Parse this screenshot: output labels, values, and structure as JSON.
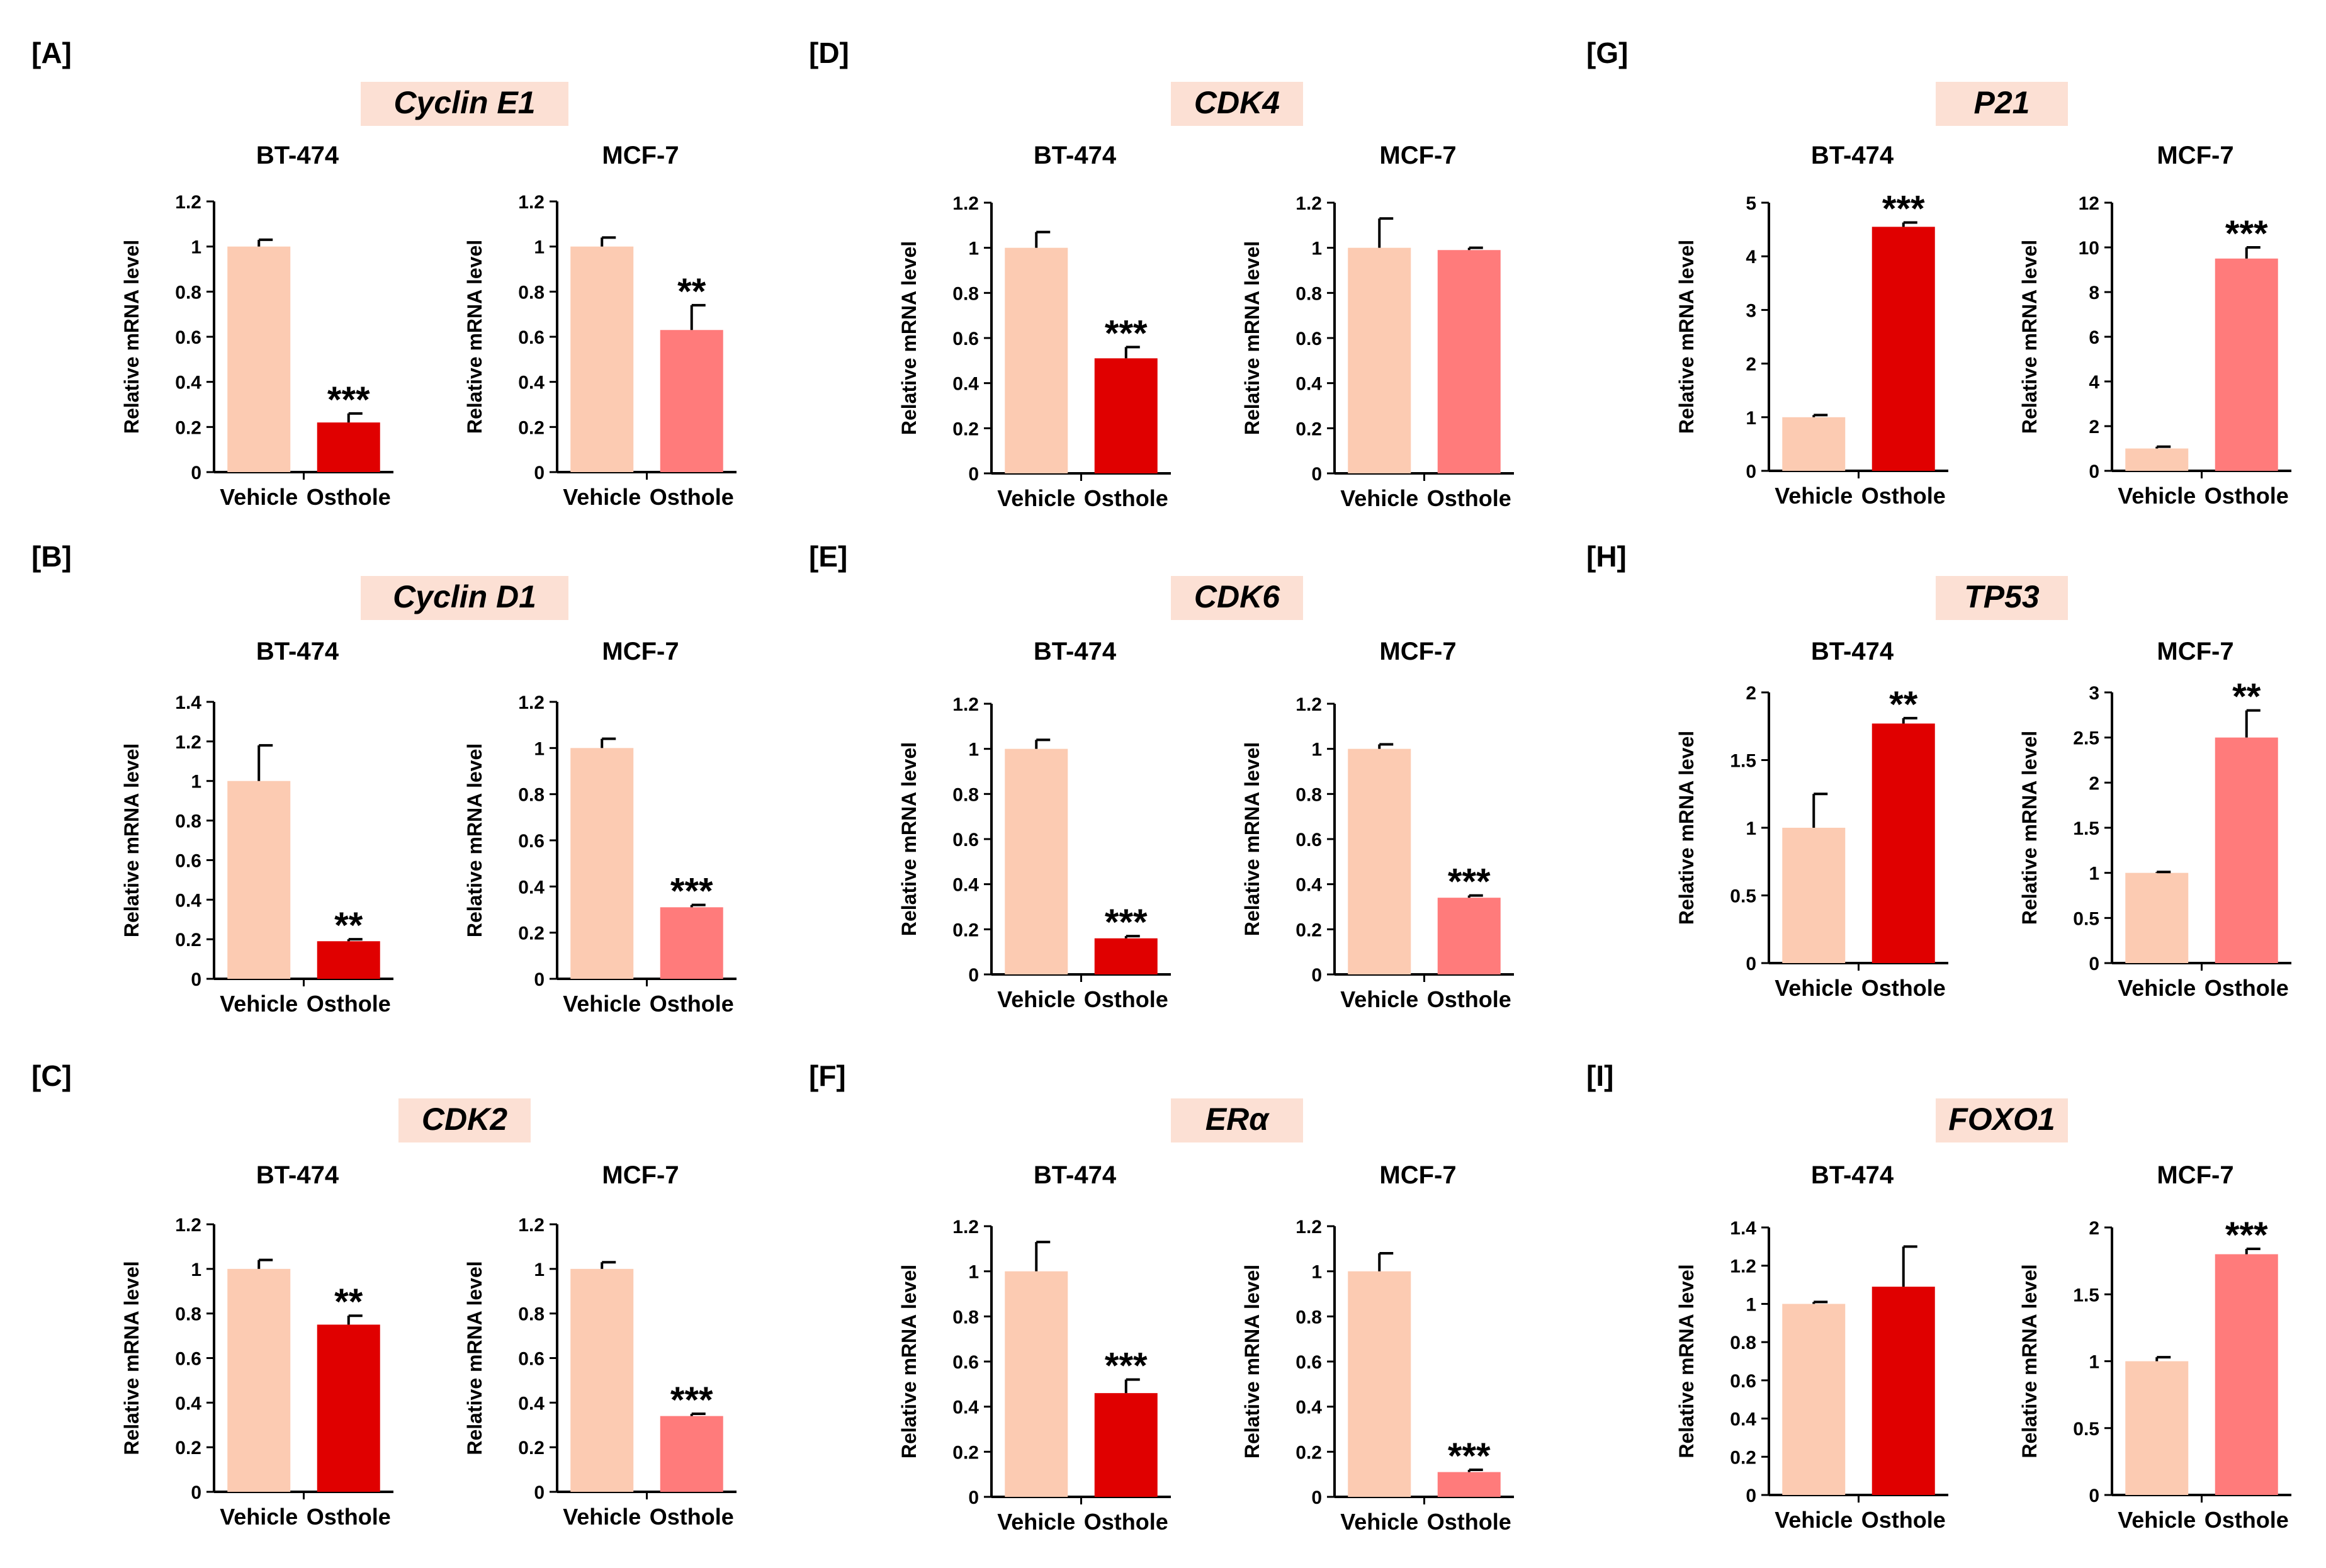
{
  "figure": {
    "colors": {
      "vehicle": "#FCCBB2",
      "osthole_bt474": "#E00000",
      "osthole_mcf7": "#FF7B7B",
      "gene_box": "#FCE0D4",
      "axis": "#000000"
    }
  },
  "chart_data": [
    {
      "panel": "[A]",
      "gene": "Cyclin E1",
      "charts": [
        {
          "type": "bar",
          "title": "BT-474",
          "categories": [
            "Vehicle",
            "Osthole"
          ],
          "values": [
            1.0,
            0.22
          ],
          "errors": [
            0.03,
            0.04
          ],
          "significance": [
            "",
            "***"
          ],
          "ylim": [
            0,
            1.2
          ],
          "yticks": [
            "0",
            "0.2",
            "0.4",
            "0.6",
            "0.8",
            "1",
            "1.2"
          ],
          "ylabel": "Relative mRNA level"
        },
        {
          "type": "bar",
          "title": "MCF-7",
          "categories": [
            "Vehicle",
            "Osthole"
          ],
          "values": [
            1.0,
            0.63
          ],
          "errors": [
            0.04,
            0.11
          ],
          "significance": [
            "",
            "**"
          ],
          "ylim": [
            0,
            1.2
          ],
          "yticks": [
            "0",
            "0.2",
            "0.4",
            "0.6",
            "0.8",
            "1",
            "1.2"
          ],
          "ylabel": "Relative mRNA level"
        }
      ]
    },
    {
      "panel": "[B]",
      "gene": "Cyclin D1",
      "charts": [
        {
          "type": "bar",
          "title": "BT-474",
          "categories": [
            "Vehicle",
            "Osthole"
          ],
          "values": [
            1.0,
            0.19
          ],
          "errors": [
            0.18,
            0.01
          ],
          "significance": [
            "",
            "**"
          ],
          "ylim": [
            0,
            1.4
          ],
          "yticks": [
            "0",
            "0.2",
            "0.4",
            "0.6",
            "0.8",
            "1",
            "1.2",
            "1.4"
          ],
          "ylabel": "Relative mRNA level"
        },
        {
          "type": "bar",
          "title": "MCF-7",
          "categories": [
            "Vehicle",
            "Osthole"
          ],
          "values": [
            1.0,
            0.31
          ],
          "errors": [
            0.04,
            0.01
          ],
          "significance": [
            "",
            "***"
          ],
          "ylim": [
            0,
            1.2
          ],
          "yticks": [
            "0",
            "0.2",
            "0.4",
            "0.6",
            "0.8",
            "1",
            "1.2"
          ],
          "ylabel": "Relative mRNA level"
        }
      ]
    },
    {
      "panel": "[C]",
      "gene": "CDK2",
      "charts": [
        {
          "type": "bar",
          "title": "BT-474",
          "categories": [
            "Vehicle",
            "Osthole"
          ],
          "values": [
            1.0,
            0.75
          ],
          "errors": [
            0.04,
            0.04
          ],
          "significance": [
            "",
            "**"
          ],
          "ylim": [
            0,
            1.2
          ],
          "yticks": [
            "0",
            "0.2",
            "0.4",
            "0.6",
            "0.8",
            "1",
            "1.2"
          ],
          "ylabel": "Relative mRNA level"
        },
        {
          "type": "bar",
          "title": "MCF-7",
          "categories": [
            "Vehicle",
            "Osthole"
          ],
          "values": [
            1.0,
            0.34
          ],
          "errors": [
            0.03,
            0.01
          ],
          "significance": [
            "",
            "***"
          ],
          "ylim": [
            0,
            1.2
          ],
          "yticks": [
            "0",
            "0.2",
            "0.4",
            "0.6",
            "0.8",
            "1",
            "1.2"
          ],
          "ylabel": "Relative mRNA level"
        }
      ]
    },
    {
      "panel": "[D]",
      "gene": "CDK4",
      "charts": [
        {
          "type": "bar",
          "title": "BT-474",
          "categories": [
            "Vehicle",
            "Osthole"
          ],
          "values": [
            1.0,
            0.51
          ],
          "errors": [
            0.07,
            0.05
          ],
          "significance": [
            "",
            "***"
          ],
          "ylim": [
            0,
            1.2
          ],
          "yticks": [
            "0",
            "0.2",
            "0.4",
            "0.6",
            "0.8",
            "1",
            "1.2"
          ],
          "ylabel": "Relative mRNA level"
        },
        {
          "type": "bar",
          "title": "MCF-7",
          "categories": [
            "Vehicle",
            "Osthole"
          ],
          "values": [
            1.0,
            0.99
          ],
          "errors": [
            0.13,
            0.01
          ],
          "significance": [
            "",
            ""
          ],
          "ylim": [
            0,
            1.2
          ],
          "yticks": [
            "0",
            "0.2",
            "0.4",
            "0.6",
            "0.8",
            "1",
            "1.2"
          ],
          "ylabel": "Relative mRNA level"
        }
      ]
    },
    {
      "panel": "[E]",
      "gene": "CDK6",
      "charts": [
        {
          "type": "bar",
          "title": "BT-474",
          "categories": [
            "Vehicle",
            "Osthole"
          ],
          "values": [
            1.0,
            0.16
          ],
          "errors": [
            0.04,
            0.01
          ],
          "significance": [
            "",
            "***"
          ],
          "ylim": [
            0,
            1.2
          ],
          "yticks": [
            "0",
            "0.2",
            "0.4",
            "0.6",
            "0.8",
            "1",
            "1.2"
          ],
          "ylabel": "Relative mRNA level"
        },
        {
          "type": "bar",
          "title": "MCF-7",
          "categories": [
            "Vehicle",
            "Osthole"
          ],
          "values": [
            1.0,
            0.34
          ],
          "errors": [
            0.02,
            0.01
          ],
          "significance": [
            "",
            "***"
          ],
          "ylim": [
            0,
            1.2
          ],
          "yticks": [
            "0",
            "0.2",
            "0.4",
            "0.6",
            "0.8",
            "1",
            "1.2"
          ],
          "ylabel": "Relative mRNA level"
        }
      ]
    },
    {
      "panel": "[F]",
      "gene": "ERα",
      "charts": [
        {
          "type": "bar",
          "title": "BT-474",
          "categories": [
            "Vehicle",
            "Osthole"
          ],
          "values": [
            1.0,
            0.46
          ],
          "errors": [
            0.13,
            0.06
          ],
          "significance": [
            "",
            "***"
          ],
          "ylim": [
            0,
            1.2
          ],
          "yticks": [
            "0",
            "0.2",
            "0.4",
            "0.6",
            "0.8",
            "1",
            "1.2"
          ],
          "ylabel": "Relative mRNA level"
        },
        {
          "type": "bar",
          "title": "MCF-7",
          "categories": [
            "Vehicle",
            "Osthole"
          ],
          "values": [
            1.0,
            0.11
          ],
          "errors": [
            0.08,
            0.01
          ],
          "significance": [
            "",
            "***"
          ],
          "ylim": [
            0,
            1.2
          ],
          "yticks": [
            "0",
            "0.2",
            "0.4",
            "0.6",
            "0.8",
            "1",
            "1.2"
          ],
          "ylabel": "Relative mRNA level"
        }
      ]
    },
    {
      "panel": "[G]",
      "gene": "P21",
      "charts": [
        {
          "type": "bar",
          "title": "BT-474",
          "categories": [
            "Vehicle",
            "Osthole"
          ],
          "values": [
            1.0,
            4.55
          ],
          "errors": [
            0.04,
            0.08
          ],
          "significance": [
            "",
            "***"
          ],
          "ylim": [
            0,
            5
          ],
          "yticks": [
            "0",
            "1",
            "2",
            "3",
            "4",
            "5"
          ],
          "ylabel": "Relative mRNA level"
        },
        {
          "type": "bar",
          "title": "MCF-7",
          "categories": [
            "Vehicle",
            "Osthole"
          ],
          "values": [
            1.0,
            9.5
          ],
          "errors": [
            0.08,
            0.5
          ],
          "significance": [
            "",
            "***"
          ],
          "ylim": [
            0,
            12
          ],
          "yticks": [
            "0",
            "2",
            "4",
            "6",
            "8",
            "10",
            "12"
          ],
          "ylabel": "Relative mRNA level"
        }
      ]
    },
    {
      "panel": "[H]",
      "gene": "TP53",
      "charts": [
        {
          "type": "bar",
          "title": "BT-474",
          "categories": [
            "Vehicle",
            "Osthole"
          ],
          "values": [
            1.0,
            1.77
          ],
          "errors": [
            0.25,
            0.04
          ],
          "significance": [
            "",
            "**"
          ],
          "ylim": [
            0,
            2
          ],
          "yticks": [
            "0",
            "0.5",
            "1",
            "1.5",
            "2"
          ],
          "ylabel": "Relative mRNA level"
        },
        {
          "type": "bar",
          "title": "MCF-7",
          "categories": [
            "Vehicle",
            "Osthole"
          ],
          "values": [
            1.0,
            2.5
          ],
          "errors": [
            0.01,
            0.3
          ],
          "significance": [
            "",
            "**"
          ],
          "ylim": [
            0,
            3
          ],
          "yticks": [
            "0",
            "0.5",
            "1",
            "1.5",
            "2",
            "2.5",
            "3"
          ],
          "ylabel": "Relative mRNA level"
        }
      ]
    },
    {
      "panel": "[I]",
      "gene": "FOXO1",
      "charts": [
        {
          "type": "bar",
          "title": "BT-474",
          "categories": [
            "Vehicle",
            "Osthole"
          ],
          "values": [
            1.0,
            1.09
          ],
          "errors": [
            0.01,
            0.21
          ],
          "significance": [
            "",
            ""
          ],
          "ylim": [
            0,
            1.4
          ],
          "yticks": [
            "0",
            "0.2",
            "0.4",
            "0.6",
            "0.8",
            "1",
            "1.2",
            "1.4"
          ],
          "ylabel": "Relative mRNA level"
        },
        {
          "type": "bar",
          "title": "MCF-7",
          "categories": [
            "Vehicle",
            "Osthole"
          ],
          "values": [
            1.0,
            1.8
          ],
          "errors": [
            0.03,
            0.04
          ],
          "significance": [
            "",
            "***"
          ],
          "ylim": [
            0,
            2
          ],
          "yticks": [
            "0",
            "0.5",
            "1",
            "1.5",
            "2"
          ],
          "ylabel": "Relative mRNA level"
        }
      ]
    }
  ]
}
